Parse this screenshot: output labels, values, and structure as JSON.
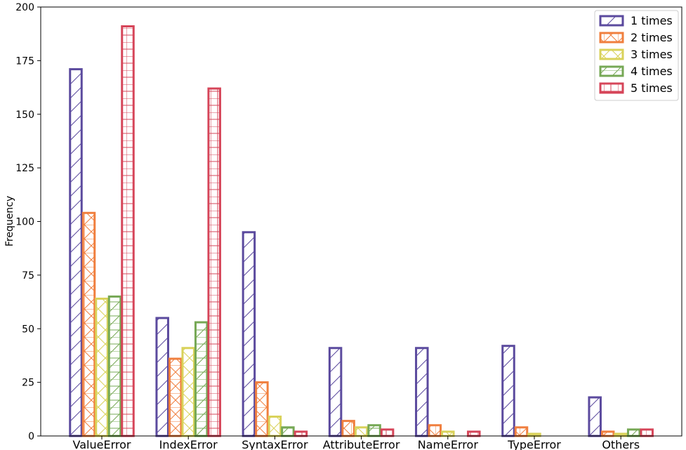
{
  "chart_data": {
    "type": "bar",
    "title": "",
    "xlabel": "",
    "ylabel": "Frequency",
    "ylim": [
      0,
      200
    ],
    "yticks": [
      0,
      25,
      50,
      75,
      100,
      125,
      150,
      175,
      200
    ],
    "categories": [
      "ValueError",
      "IndexError",
      "SyntaxError",
      "AttributeError",
      "NameError",
      "TypeError",
      "Others"
    ],
    "legend_position": "top-right",
    "grid": false,
    "series": [
      {
        "name": "1 times",
        "color": "#5b4a9e",
        "hatch": "diagonal",
        "values": [
          171,
          55,
          95,
          41,
          41,
          42,
          18
        ]
      },
      {
        "name": "2 times",
        "color": "#f07f3e",
        "hatch": "diamond-cross",
        "values": [
          104,
          36,
          25,
          7,
          5,
          4,
          2
        ]
      },
      {
        "name": "3 times",
        "color": "#d9d25a",
        "hatch": "cross",
        "values": [
          64,
          41,
          9,
          4,
          2,
          1,
          1
        ]
      },
      {
        "name": "4 times",
        "color": "#76a855",
        "hatch": "diagonal-grid",
        "values": [
          65,
          53,
          4,
          5,
          0,
          0,
          3
        ]
      },
      {
        "name": "5 times",
        "color": "#d64559",
        "hatch": "grid",
        "values": [
          191,
          162,
          2,
          3,
          2,
          0,
          3
        ]
      }
    ]
  }
}
